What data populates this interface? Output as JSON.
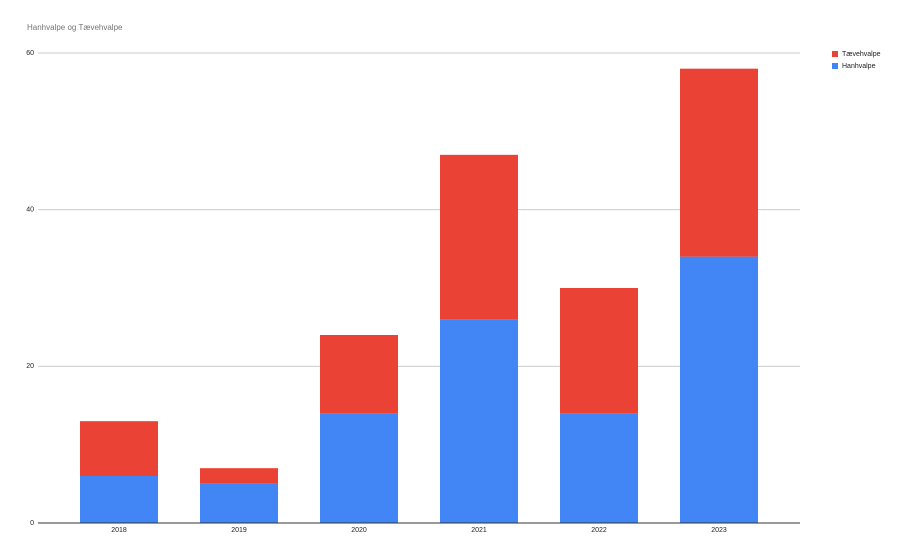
{
  "chart_data": {
    "type": "stacked_bar",
    "title": "Hanhvalpe og Tævehvalpe",
    "categories": [
      "2018",
      "2019",
      "2020",
      "2021",
      "2022",
      "2023"
    ],
    "series": [
      {
        "name": "Hanhvalpe",
        "color": "#4285f4",
        "values": [
          6,
          5,
          14,
          26,
          14,
          34
        ]
      },
      {
        "name": "Tævehvalpe",
        "color": "#ea4335",
        "values": [
          7,
          2,
          10,
          21,
          16,
          24
        ]
      }
    ],
    "ylim": [
      0,
      60
    ],
    "yticks": [
      0,
      20,
      40,
      60
    ],
    "grid": true,
    "legend": "top-right"
  }
}
